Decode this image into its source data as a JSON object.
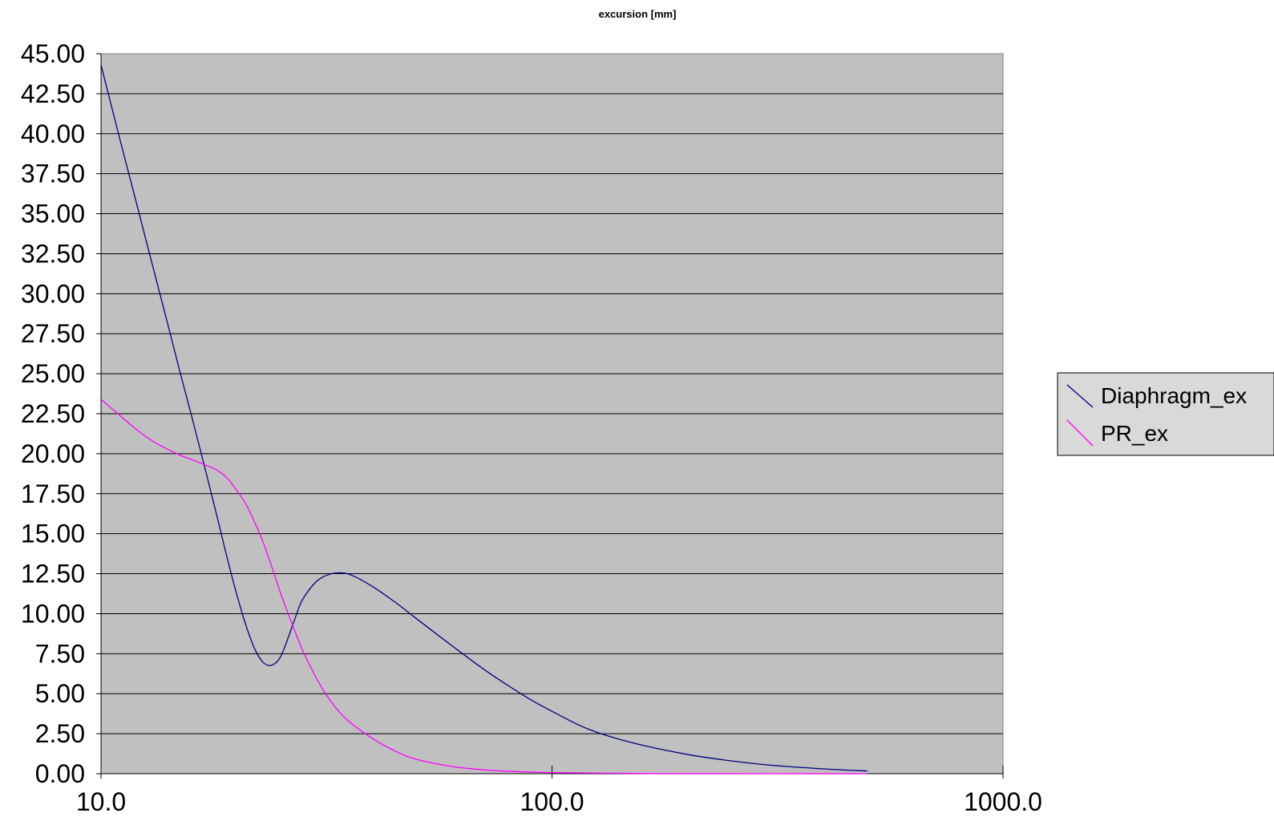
{
  "chart_data": {
    "type": "line",
    "title": "excursion [mm]",
    "xlabel": "",
    "ylabel": "",
    "x_scale": "log",
    "xlim": [
      10,
      1000
    ],
    "ylim": [
      0,
      45
    ],
    "x_ticks": [
      "10.0",
      "100.0",
      "1000.0"
    ],
    "y_ticks": [
      "0.00",
      "2.50",
      "5.00",
      "7.50",
      "10.00",
      "12.50",
      "15.00",
      "17.50",
      "20.00",
      "22.50",
      "25.00",
      "27.50",
      "30.00",
      "32.50",
      "35.00",
      "37.50",
      "40.00",
      "42.50",
      "45.00"
    ],
    "plot_background": "#c0c0c0",
    "grid": true,
    "legend_position": "right",
    "legend_background": "#d9d9d9",
    "series": [
      {
        "name": "Diaphragm_ex",
        "color": "#000080",
        "points": [
          [
            10,
            44.3
          ],
          [
            11,
            39.7
          ],
          [
            12,
            35.6
          ],
          [
            13,
            31.8
          ],
          [
            14,
            28.3
          ],
          [
            15,
            25.0
          ],
          [
            16,
            22.0
          ],
          [
            17,
            19.1
          ],
          [
            18,
            16.3
          ],
          [
            19,
            13.6
          ],
          [
            20,
            11.2
          ],
          [
            21,
            9.2
          ],
          [
            22,
            7.7
          ],
          [
            23,
            6.9
          ],
          [
            24,
            6.8
          ],
          [
            25,
            7.3
          ],
          [
            26,
            8.5
          ],
          [
            27,
            9.8
          ],
          [
            28,
            10.9
          ],
          [
            30,
            12.0
          ],
          [
            32,
            12.45
          ],
          [
            34,
            12.55
          ],
          [
            36,
            12.4
          ],
          [
            40,
            11.7
          ],
          [
            45,
            10.7
          ],
          [
            50,
            9.7
          ],
          [
            60,
            8.0
          ],
          [
            70,
            6.6
          ],
          [
            80,
            5.5
          ],
          [
            90,
            4.6
          ],
          [
            100,
            3.9
          ],
          [
            120,
            2.8
          ],
          [
            150,
            1.95
          ],
          [
            200,
            1.2
          ],
          [
            250,
            0.8
          ],
          [
            300,
            0.55
          ],
          [
            400,
            0.3
          ],
          [
            500,
            0.17
          ]
        ]
      },
      {
        "name": "PR_ex",
        "color": "#ff00ff",
        "points": [
          [
            10,
            23.4
          ],
          [
            11,
            22.4
          ],
          [
            12,
            21.5
          ],
          [
            13,
            20.8
          ],
          [
            14,
            20.3
          ],
          [
            15,
            19.9
          ],
          [
            16,
            19.6
          ],
          [
            17,
            19.3
          ],
          [
            18,
            19.0
          ],
          [
            19,
            18.5
          ],
          [
            20,
            17.7
          ],
          [
            21,
            16.8
          ],
          [
            22,
            15.6
          ],
          [
            23,
            14.3
          ],
          [
            24,
            12.8
          ],
          [
            25,
            11.3
          ],
          [
            26,
            10.0
          ],
          [
            27,
            8.8
          ],
          [
            28,
            7.7
          ],
          [
            30,
            6.0
          ],
          [
            32,
            4.7
          ],
          [
            35,
            3.4
          ],
          [
            40,
            2.2
          ],
          [
            45,
            1.4
          ],
          [
            50,
            0.9
          ],
          [
            60,
            0.45
          ],
          [
            70,
            0.25
          ],
          [
            80,
            0.15
          ],
          [
            100,
            0.07
          ],
          [
            150,
            0.02
          ],
          [
            200,
            0.01
          ],
          [
            500,
            0.0
          ]
        ]
      }
    ]
  }
}
